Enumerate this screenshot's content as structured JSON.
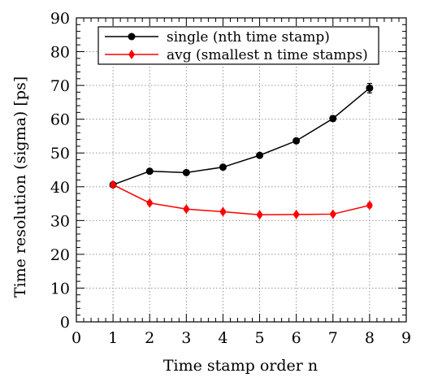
{
  "chart_data": {
    "type": "line",
    "xlabel": "Time stamp order n",
    "ylabel": "Time resolution (sigma) [ps]",
    "xlim": [
      0,
      9
    ],
    "ylim": [
      0,
      90
    ],
    "x_ticks": [
      0,
      1,
      2,
      3,
      4,
      5,
      6,
      7,
      8,
      9
    ],
    "y_ticks": [
      0,
      10,
      20,
      30,
      40,
      50,
      60,
      70,
      80,
      90
    ],
    "grid": true,
    "legend_position": "top",
    "series": [
      {
        "name": "single (nth time stamp)",
        "color": "#000000",
        "marker": "circle",
        "x": [
          1,
          2,
          3,
          4,
          5,
          6,
          7,
          8
        ],
        "y": [
          40.6,
          44.6,
          44.2,
          45.8,
          49.3,
          53.6,
          60.2,
          69.2
        ],
        "yerr": [
          0.6,
          0.6,
          0.6,
          0.6,
          0.6,
          0.7,
          0.8,
          1.4
        ]
      },
      {
        "name": "avg (smallest n time stamps)",
        "color": "#ff0000",
        "marker": "diamond",
        "x": [
          1,
          2,
          3,
          4,
          5,
          6,
          7,
          8
        ],
        "y": [
          40.6,
          35.2,
          33.4,
          32.6,
          31.7,
          31.8,
          31.9,
          34.5
        ],
        "yerr": [
          0.5,
          0.5,
          0.5,
          0.5,
          0.4,
          0.4,
          0.4,
          0.6
        ]
      }
    ]
  }
}
